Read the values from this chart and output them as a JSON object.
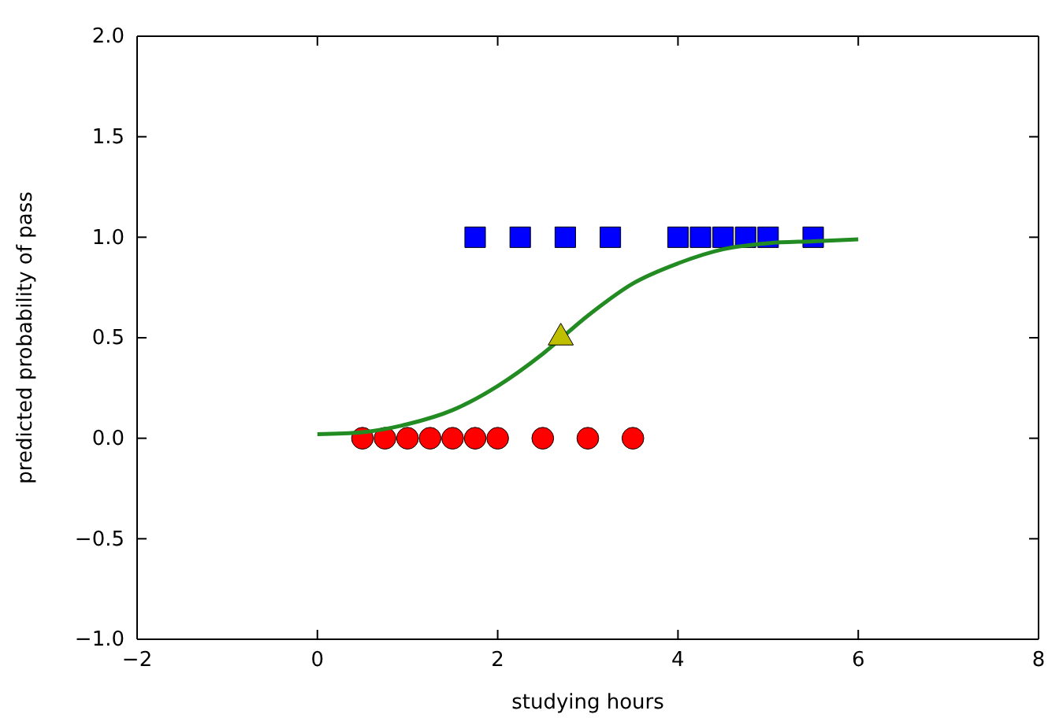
{
  "chart_data": {
    "type": "scatter",
    "xlabel": "studying hours",
    "ylabel": "predicted probability of pass",
    "xlim": [
      -2,
      8
    ],
    "ylim": [
      -1,
      2
    ],
    "xticks": [
      {
        "value": -2,
        "label": "−2"
      },
      0,
      2,
      4,
      6,
      8
    ],
    "yticks": [
      {
        "value": -1,
        "label": "−1.0"
      },
      {
        "value": -0.5,
        "label": "−0.5"
      },
      {
        "value": 0,
        "label": "0.0"
      },
      {
        "value": 0.5,
        "label": "0.5"
      },
      {
        "value": 1,
        "label": "1.0"
      },
      {
        "value": 1.5,
        "label": "1.5"
      },
      {
        "value": 2,
        "label": "2.0"
      }
    ],
    "grid": false,
    "series": [
      {
        "marker": "circle",
        "color": "#ff0000",
        "x": [
          0.5,
          0.75,
          1,
          1.25,
          1.5,
          1.75,
          2,
          2.5,
          3,
          3.5
        ],
        "values": [
          0,
          0,
          0,
          0,
          0,
          0,
          0,
          0,
          0,
          0
        ]
      },
      {
        "marker": "square",
        "color": "#0000ff",
        "x": [
          1.75,
          2.25,
          2.75,
          3.25,
          4,
          4.25,
          4.5,
          4.75,
          5,
          5.5
        ],
        "values": [
          1,
          1,
          1,
          1,
          1,
          1,
          1,
          1,
          1,
          1
        ]
      },
      {
        "type": "line",
        "marker": "none",
        "line_style": "solid",
        "color": "#228b22",
        "x": [
          0,
          0.5,
          1,
          1.5,
          2,
          2.5,
          3,
          3.5,
          4,
          4.5,
          5,
          5.5,
          6
        ],
        "values": [
          0.02,
          0.03,
          0.07,
          0.14,
          0.26,
          0.42,
          0.61,
          0.77,
          0.87,
          0.94,
          0.97,
          0.98,
          0.99
        ]
      },
      {
        "marker": "triangle",
        "color": "#bfbf00",
        "x": [
          2.7
        ],
        "values": [
          0.5
        ]
      }
    ]
  }
}
